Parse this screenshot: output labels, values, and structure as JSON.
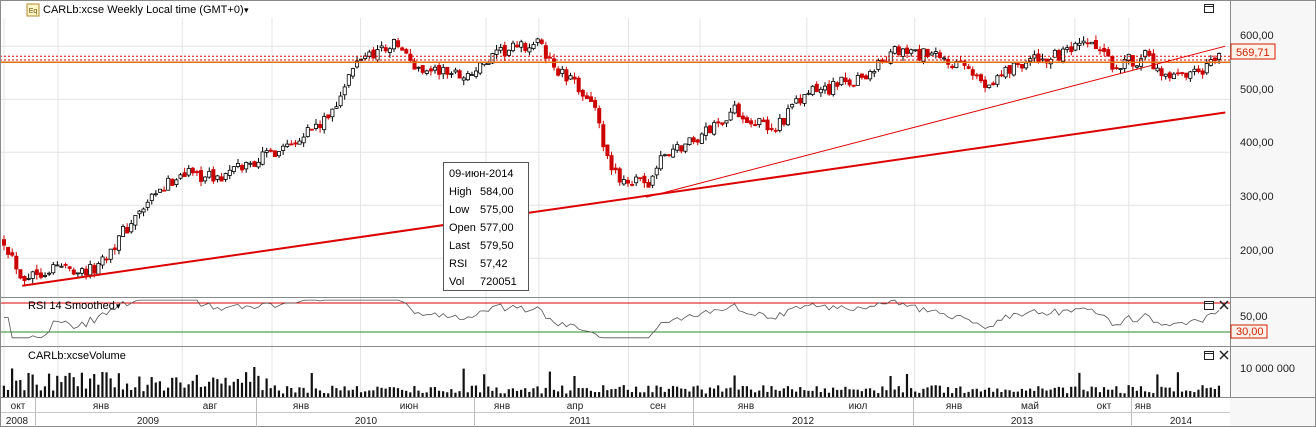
{
  "header": {
    "badge": "Eq",
    "title": "CARLb:xcse Weekly Local time (GMT+0)",
    "caret": "▾"
  },
  "price_panel": {
    "y_ticks": [
      "600,00",
      "500,00",
      "400,00",
      "300,00",
      "200,00"
    ],
    "current_price_label": "569,71",
    "tooltip": {
      "date": "09-июн-2014",
      "rows": [
        {
          "label": "High",
          "value": "584,00"
        },
        {
          "label": "Low",
          "value": "575,00"
        },
        {
          "label": "Open",
          "value": "577,00"
        },
        {
          "label": "Last",
          "value": "579,50"
        },
        {
          "label": "RSI",
          "value": "57,42"
        },
        {
          "label": "Vol",
          "value": "720051"
        }
      ]
    }
  },
  "rsi_panel": {
    "title": "RSI 14 Smoothed",
    "caret": "▾",
    "y_ticks": [
      "50,00"
    ],
    "level_label": "30,00"
  },
  "volume_panel": {
    "title": "CARLb:xcseVolume",
    "y_ticks": [
      "10 000 000"
    ]
  },
  "panel_icons": {
    "maximize": "□",
    "close": "✕"
  },
  "time_axis": {
    "months": [
      "окт",
      "янв",
      "авг",
      "янв",
      "июн",
      "янв",
      "апр",
      "сен",
      "янв",
      "июл",
      "янв",
      "май",
      "окт",
      "янв"
    ],
    "years": [
      "2008",
      "2009",
      "2010",
      "2011",
      "2012",
      "2013",
      "2014"
    ]
  },
  "colors": {
    "bull": "#000000",
    "bear": "#cc0000",
    "trend": "#dd0000",
    "orange": "#e07010",
    "grid": "#e4e4e4",
    "rsi_level": "#2a8a2a"
  },
  "chart_data": {
    "type": "candlestick",
    "x": "weekly, Oct 2008 – Jun 2014",
    "ylim": [
      140,
      640
    ],
    "anchors": [
      [
        "2008-10",
        235
      ],
      [
        "2008-11",
        165
      ],
      [
        "2009-01",
        185
      ],
      [
        "2009-03",
        175
      ],
      [
        "2009-05",
        260
      ],
      [
        "2009-06",
        300
      ],
      [
        "2009-08",
        365
      ],
      [
        "2009-10",
        350
      ],
      [
        "2010-01",
        400
      ],
      [
        "2010-03",
        440
      ],
      [
        "2010-04",
        455
      ],
      [
        "2010-06",
        580
      ],
      [
        "2010-08",
        605
      ],
      [
        "2010-09",
        560
      ],
      [
        "2010-12",
        545
      ],
      [
        "2011-02",
        590
      ],
      [
        "2011-04",
        605
      ],
      [
        "2011-05",
        555
      ],
      [
        "2011-07",
        500
      ],
      [
        "2011-08",
        360
      ],
      [
        "2011-10",
        335
      ],
      [
        "2011-11",
        395
      ],
      [
        "2012-01",
        430
      ],
      [
        "2012-03",
        480
      ],
      [
        "2012-05",
        440
      ],
      [
        "2012-07",
        510
      ],
      [
        "2012-09",
        530
      ],
      [
        "2012-10",
        540
      ],
      [
        "2012-12",
        590
      ],
      [
        "2013-02",
        580
      ],
      [
        "2013-04",
        555
      ],
      [
        "2013-05",
        530
      ],
      [
        "2013-07",
        570
      ],
      [
        "2013-09",
        580
      ],
      [
        "2013-11",
        605
      ],
      [
        "2013-12",
        565
      ],
      [
        "2014-02",
        580
      ],
      [
        "2014-03",
        535
      ],
      [
        "2014-05",
        545
      ],
      [
        "2014-06",
        577
      ]
    ],
    "trendlines": [
      {
        "from": [
          "2008-11",
          148
        ],
        "to": [
          "2014-06",
          475
        ]
      },
      {
        "from": [
          "2011-10",
          315
        ],
        "to": [
          "2014-06",
          600
        ]
      }
    ],
    "horizontal_lines": [
      569.71,
      574,
      581
    ],
    "rsi_levels": [
      30,
      70
    ]
  }
}
